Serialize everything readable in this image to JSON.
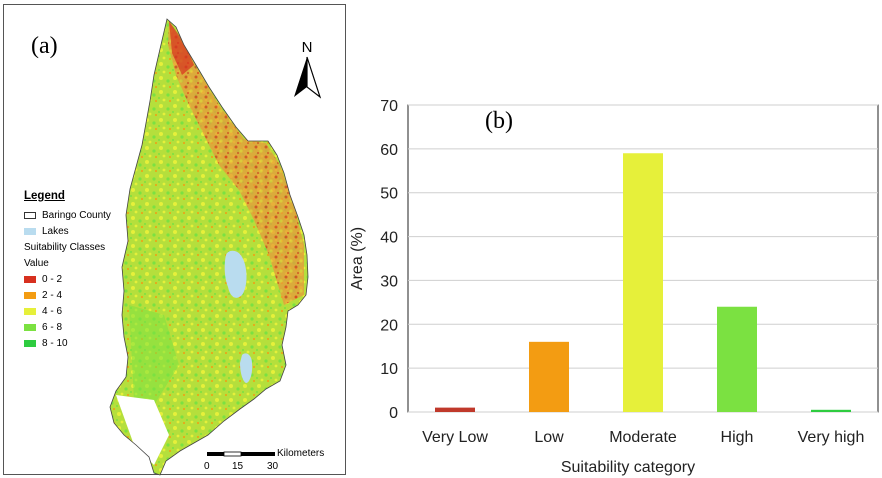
{
  "panel_a": {
    "label": "(a)",
    "north_label": "N",
    "legend": {
      "title": "Legend",
      "boundary_label": "Baringo County",
      "lakes_label": "Lakes",
      "lakes_color": "#b9dcef",
      "classes_title": "Suitability Classes",
      "value_label": "Value",
      "classes": [
        {
          "label": "0 - 2",
          "color": "#d7301f"
        },
        {
          "label": "2 - 4",
          "color": "#f39c12"
        },
        {
          "label": "4 - 6",
          "color": "#e6f03a"
        },
        {
          "label": "6 - 8",
          "color": "#7be141"
        },
        {
          "label": "8 - 10",
          "color": "#2ecc40"
        }
      ]
    },
    "scale_bar": {
      "unit": "Kilometers",
      "ticks": [
        "0",
        "15",
        "30"
      ]
    }
  },
  "chart_data": {
    "type": "bar",
    "label": "(b)",
    "categories": [
      "Very Low",
      "Low",
      "Moderate",
      "High",
      "Very high"
    ],
    "values": [
      1,
      16,
      59,
      24,
      0.5
    ],
    "colors": [
      "#c0392b",
      "#f39c12",
      "#e6f03a",
      "#7be141",
      "#2ecc40"
    ],
    "xlabel": "Suitability category",
    "ylabel": "Area (%)",
    "ylim": [
      0,
      70
    ],
    "yticks": [
      0,
      10,
      20,
      30,
      40,
      50,
      60,
      70
    ],
    "grid": true
  }
}
